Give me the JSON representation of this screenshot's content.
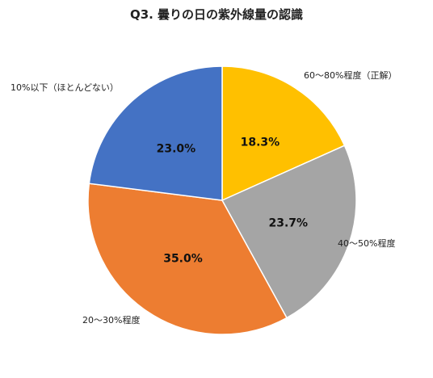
{
  "chart_data": {
    "type": "pie",
    "title": "Q3. 曇りの日の紫外線量の認識",
    "slices": [
      {
        "category": "60〜80%程度（正解）",
        "value": 18.3,
        "value_label": "18.3%",
        "color": "#FFC000"
      },
      {
        "category": "40〜50%程度",
        "value": 23.7,
        "value_label": "23.7%",
        "color": "#A5A5A5"
      },
      {
        "category": "20〜30%程度",
        "value": 35.0,
        "value_label": "35.0%",
        "color": "#ED7D31"
      },
      {
        "category": "10%以下（ほとんどない）",
        "value": 23.0,
        "value_label": "23.0%",
        "color": "#4472C4"
      }
    ],
    "start": "12 o'clock, clockwise"
  }
}
